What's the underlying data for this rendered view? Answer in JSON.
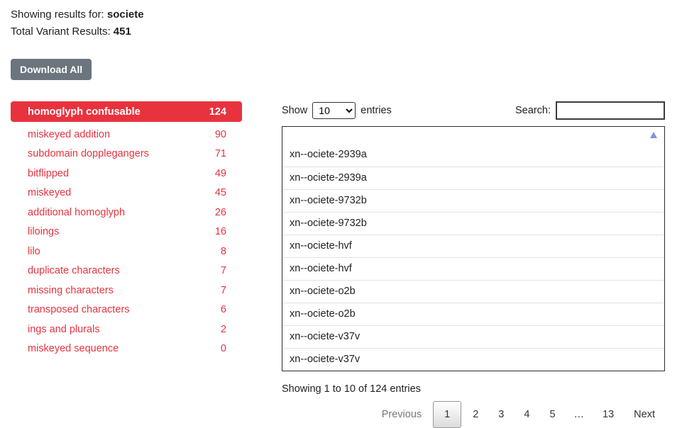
{
  "header": {
    "results_label": "Showing results for:",
    "query": "societe",
    "total_label": "Total Variant Results:",
    "total_count": "451",
    "download_button_label": "Download All"
  },
  "sidebar": {
    "items": [
      {
        "label": "homoglyph confusable",
        "count": "124",
        "active": true
      },
      {
        "label": "miskeyed addition",
        "count": "90",
        "active": false
      },
      {
        "label": "subdomain dopplegangers",
        "count": "71",
        "active": false
      },
      {
        "label": "bitflipped",
        "count": "49",
        "active": false
      },
      {
        "label": "miskeyed",
        "count": "45",
        "active": false
      },
      {
        "label": "additional homoglyph",
        "count": "26",
        "active": false
      },
      {
        "label": "liloings",
        "count": "16",
        "active": false
      },
      {
        "label": "lilo",
        "count": "8",
        "active": false
      },
      {
        "label": "duplicate characters",
        "count": "7",
        "active": false
      },
      {
        "label": "missing characters",
        "count": "7",
        "active": false
      },
      {
        "label": "transposed characters",
        "count": "6",
        "active": false
      },
      {
        "label": "ings and plurals",
        "count": "2",
        "active": false
      },
      {
        "label": "miskeyed sequence",
        "count": "0",
        "active": false
      }
    ]
  },
  "table_controls": {
    "show_label": "Show",
    "entries_per_page": "10",
    "entries_label": "entries",
    "search_label": "Search:",
    "search_value": ""
  },
  "table": {
    "sort_state": "ascending",
    "rows": [
      "xn--ociete-2939a",
      "xn--ociete-2939a",
      "xn--ociete-9732b",
      "xn--ociete-9732b",
      "xn--ociete-hvf",
      "xn--ociete-hvf",
      "xn--ociete-o2b",
      "xn--ociete-o2b",
      "xn--ociete-v37v",
      "xn--ociete-v37v"
    ]
  },
  "footer": {
    "info": "Showing 1 to 10 of 124 entries",
    "pagination": {
      "previous_label": "Previous",
      "pages": [
        "1",
        "2",
        "3",
        "4",
        "5",
        "…",
        "13"
      ],
      "active_page": "1",
      "next_label": "Next"
    }
  },
  "colors": {
    "accent_red": "#e8333f",
    "button_gray": "#6c757d",
    "sort_arrow_blue": "#8791da"
  }
}
